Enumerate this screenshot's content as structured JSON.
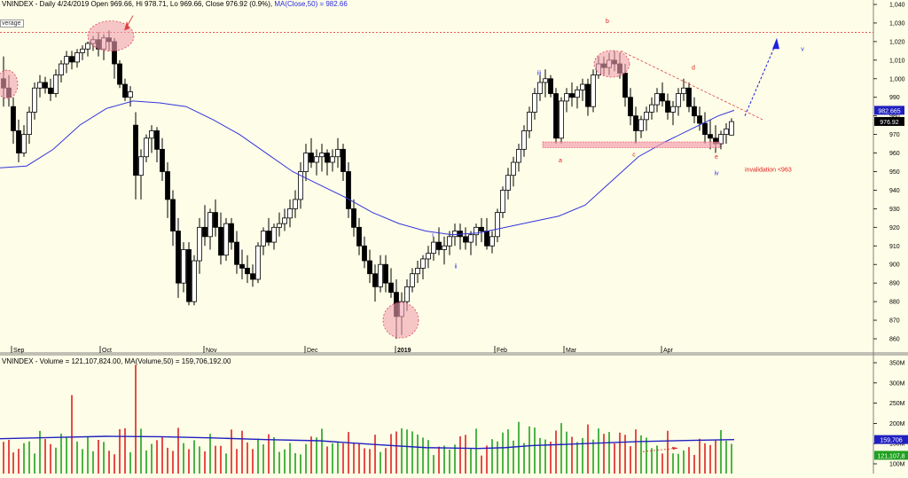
{
  "chart_data": [
    {
      "type": "candlestick",
      "header": {
        "symbol": "VNINDEX - Daily 4/24/2019",
        "ohlc": "Open 969.66, Hi 978.71, Lo 969.66, Close 976.92 (0.9%)",
        "ma": "MA(Close,50) = 982.66"
      },
      "legend_fragment": "verage",
      "ylim": [
        850,
        1045
      ],
      "y_ticks": [
        "1,040",
        "1,030",
        "1,020",
        "1,010",
        "1,000",
        "990",
        "980",
        "970",
        "960",
        "950",
        "940",
        "930",
        "920",
        "910",
        "900",
        "890",
        "880",
        "870",
        "860"
      ],
      "x_labels": [
        "Sep",
        "Oct",
        "Nov",
        "Dec",
        "2019",
        "Feb",
        "Mar",
        "Apr"
      ],
      "last_close_label": "976.92",
      "ma_label": "982.665",
      "annotations": {
        "wave_labels_red": [
          "a",
          "b",
          "c",
          "d",
          "e"
        ],
        "wave_labels_blue": [
          "i",
          "ii",
          "iii",
          "iv",
          "v"
        ],
        "invalidation": "invalidation <963"
      },
      "candles_mode": "plotted from data arrays"
    },
    {
      "type": "bar",
      "title": "VNINDEX - Volume = 121,107,824.00, MA(Volume,50) = 159,706,192.00",
      "ylim": [
        80,
        360
      ],
      "y_ticks": [
        "350M",
        "300M",
        "250M",
        "200M",
        "150M",
        "100M"
      ],
      "ma_label": "159,706",
      "last_label": "121,107,8"
    }
  ]
}
